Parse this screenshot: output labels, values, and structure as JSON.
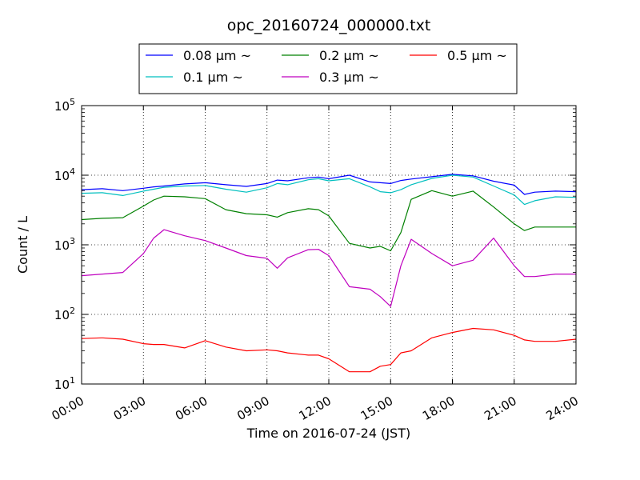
{
  "chart_data": {
    "type": "line",
    "title": "opc_20160724_000000.txt",
    "xlabel": "Time on 2016-07-24 (JST)",
    "ylabel": "Count / L",
    "y_scale": "log",
    "xlim": [
      0,
      24
    ],
    "ylim": [
      10,
      100000
    ],
    "x_tick_labels": [
      "00:00",
      "03:00",
      "06:00",
      "09:00",
      "12:00",
      "15:00",
      "18:00",
      "21:00",
      "24:00"
    ],
    "y_tick_labels": [
      {
        "base": "10",
        "exp": "1"
      },
      {
        "base": "10",
        "exp": "2"
      },
      {
        "base": "10",
        "exp": "3"
      },
      {
        "base": "10",
        "exp": "4"
      },
      {
        "base": "10",
        "exp": "5"
      }
    ],
    "grid": true,
    "legend_placement": "top-center",
    "x": [
      0,
      1,
      2,
      3,
      3.5,
      4,
      5,
      6,
      7,
      8,
      9,
      9.5,
      10,
      11,
      11.5,
      12,
      13,
      14,
      14.5,
      15,
      15.5,
      16,
      17,
      18,
      19,
      20,
      21,
      21.5,
      22,
      23,
      24
    ],
    "series": [
      {
        "name": "0.08 μm ~",
        "color": "#0000ff",
        "values": [
          6200,
          6400,
          6000,
          6500,
          6800,
          7000,
          7500,
          7800,
          7300,
          6900,
          7600,
          8500,
          8300,
          9200,
          9400,
          8900,
          10000,
          8000,
          7800,
          7600,
          8400,
          8800,
          9500,
          10300,
          9800,
          8200,
          7200,
          5300,
          5700,
          5900,
          5800
        ]
      },
      {
        "name": "0.1 μm ~",
        "color": "#00bfbf",
        "values": [
          5500,
          5600,
          5100,
          5900,
          6300,
          6700,
          7000,
          7100,
          6300,
          5700,
          6600,
          7600,
          7300,
          8600,
          8900,
          8300,
          8900,
          6800,
          5800,
          5600,
          6200,
          7300,
          9000,
          10000,
          9400,
          7000,
          5200,
          3800,
          4300,
          4900,
          4800
        ]
      },
      {
        "name": "0.2 μm ~",
        "color": "#008000",
        "values": [
          2300,
          2400,
          2450,
          3600,
          4400,
          5000,
          4900,
          4600,
          3200,
          2800,
          2700,
          2500,
          2900,
          3300,
          3200,
          2600,
          1050,
          900,
          950,
          820,
          1500,
          4500,
          6000,
          5000,
          5900,
          3500,
          2000,
          1600,
          1800,
          1800,
          1800
        ]
      },
      {
        "name": "0.3 μm ~",
        "color": "#bf00bf",
        "values": [
          360,
          380,
          400,
          750,
          1250,
          1650,
          1350,
          1150,
          900,
          700,
          640,
          460,
          650,
          850,
          860,
          700,
          250,
          230,
          180,
          130,
          500,
          1200,
          750,
          500,
          600,
          1250,
          500,
          350,
          350,
          380,
          380
        ]
      },
      {
        "name": "0.5 μm ~",
        "color": "#ff0000",
        "values": [
          45,
          46,
          44,
          38,
          37,
          37,
          33,
          42,
          34,
          30,
          31,
          30,
          28,
          26,
          26,
          23,
          15,
          15,
          18,
          19,
          28,
          30,
          46,
          55,
          63,
          60,
          50,
          43,
          41,
          41,
          44
        ]
      }
    ]
  }
}
